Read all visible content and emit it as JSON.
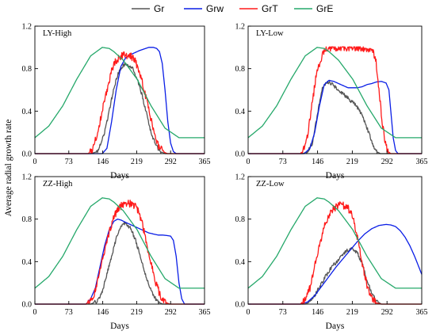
{
  "figure": {
    "ylabel": "Average radial growth rate",
    "xlabel": "Days"
  },
  "legend": {
    "placement": "top-center",
    "entries": [
      {
        "name": "Gr",
        "color": "#555555"
      },
      {
        "name": "Grw",
        "color": "#0a1ee6"
      },
      {
        "name": "GrT",
        "color": "#ff1a1a"
      },
      {
        "name": "GrE",
        "color": "#25a86a"
      }
    ]
  },
  "chart_data": [
    {
      "type": "line",
      "title": "LY-High",
      "xlabel": "Days",
      "ylabel": "Average radial growth rate",
      "xlim": [
        0,
        365
      ],
      "ylim": [
        0,
        1.2
      ],
      "xticks": [
        0,
        73,
        146,
        219,
        292,
        365
      ],
      "yticks": [
        0.0,
        0.4,
        0.8,
        1.2
      ],
      "grid": false,
      "series": [
        {
          "name": "Gr",
          "color": "#555555",
          "x": [
            0,
            120,
            135,
            150,
            160,
            170,
            180,
            190,
            200,
            210,
            220,
            230,
            240,
            250,
            260,
            270,
            280,
            290,
            365
          ],
          "y": [
            0,
            0,
            0.02,
            0.2,
            0.4,
            0.62,
            0.76,
            0.83,
            0.84,
            0.8,
            0.7,
            0.56,
            0.38,
            0.2,
            0.08,
            0.02,
            0,
            0,
            0
          ]
        },
        {
          "name": "Grw",
          "color": "#0a1ee6",
          "x": [
            0,
            145,
            155,
            165,
            175,
            185,
            195,
            205,
            215,
            225,
            235,
            245,
            255,
            262,
            268,
            274,
            280,
            286,
            292,
            298,
            304,
            365
          ],
          "y": [
            0,
            0,
            0.05,
            0.3,
            0.6,
            0.82,
            0.9,
            0.93,
            0.95,
            0.97,
            0.985,
            1.0,
            1.0,
            0.99,
            0.96,
            0.85,
            0.6,
            0.3,
            0.1,
            0.02,
            0,
            0
          ]
        },
        {
          "name": "GrT",
          "color": "#ff1a1a",
          "x": [
            0,
            115,
            125,
            135,
            145,
            155,
            165,
            175,
            185,
            195,
            205,
            215,
            225,
            235,
            245,
            255,
            265,
            275,
            285,
            295,
            365
          ],
          "y": [
            0,
            0,
            0.05,
            0.2,
            0.4,
            0.6,
            0.78,
            0.88,
            0.92,
            0.93,
            0.92,
            0.88,
            0.78,
            0.6,
            0.42,
            0.22,
            0.08,
            0.02,
            0,
            0,
            0
          ]
        },
        {
          "name": "GrE",
          "color": "#25a86a",
          "x": [
            0,
            30,
            60,
            90,
            120,
            145,
            160,
            170,
            190,
            220,
            250,
            280,
            310,
            340,
            365
          ],
          "y": [
            0.15,
            0.26,
            0.45,
            0.7,
            0.92,
            1.0,
            0.99,
            0.96,
            0.88,
            0.7,
            0.45,
            0.24,
            0.15,
            0.15,
            0.15
          ]
        }
      ]
    },
    {
      "type": "line",
      "title": "LY-Low",
      "xlabel": "Days",
      "ylabel": "",
      "xlim": [
        0,
        365
      ],
      "ylim": [
        0,
        1.2
      ],
      "xticks": [
        0,
        73,
        146,
        219,
        292,
        365
      ],
      "yticks": [
        0.0,
        0.4,
        0.8,
        1.2
      ],
      "grid": false,
      "series": [
        {
          "name": "Gr",
          "color": "#555555",
          "x": [
            0,
            115,
            125,
            135,
            145,
            155,
            165,
            175,
            185,
            195,
            205,
            215,
            225,
            235,
            245,
            255,
            262,
            270,
            278,
            365
          ],
          "y": [
            0,
            0,
            0.02,
            0.1,
            0.35,
            0.6,
            0.68,
            0.66,
            0.62,
            0.58,
            0.54,
            0.5,
            0.46,
            0.4,
            0.3,
            0.18,
            0.08,
            0.02,
            0,
            0
          ]
        },
        {
          "name": "Grw",
          "color": "#0a1ee6",
          "x": [
            0,
            118,
            130,
            140,
            150,
            160,
            170,
            180,
            190,
            200,
            210,
            220,
            230,
            240,
            250,
            260,
            270,
            280,
            290,
            296,
            300,
            305,
            310,
            315,
            365
          ],
          "y": [
            0,
            0,
            0.05,
            0.2,
            0.45,
            0.65,
            0.69,
            0.68,
            0.66,
            0.64,
            0.62,
            0.62,
            0.62,
            0.63,
            0.65,
            0.66,
            0.675,
            0.68,
            0.665,
            0.6,
            0.4,
            0.15,
            0.03,
            0,
            0
          ]
        },
        {
          "name": "GrT",
          "color": "#ff1a1a",
          "x": [
            0,
            110,
            118,
            126,
            134,
            142,
            150,
            158,
            166,
            175,
            185,
            200,
            220,
            240,
            260,
            268,
            275,
            282,
            288,
            294,
            300,
            365
          ],
          "y": [
            0,
            0,
            0.05,
            0.2,
            0.45,
            0.7,
            0.85,
            0.95,
            0.98,
            1.0,
            1.0,
            1.0,
            1.0,
            0.99,
            0.98,
            0.9,
            0.6,
            0.3,
            0.1,
            0.02,
            0,
            0
          ]
        },
        {
          "name": "GrE",
          "color": "#25a86a",
          "x": [
            0,
            30,
            60,
            90,
            120,
            145,
            160,
            170,
            190,
            220,
            250,
            280,
            310,
            340,
            365
          ],
          "y": [
            0.15,
            0.26,
            0.45,
            0.7,
            0.92,
            1.0,
            0.99,
            0.96,
            0.88,
            0.7,
            0.45,
            0.24,
            0.15,
            0.15,
            0.15
          ]
        }
      ]
    },
    {
      "type": "line",
      "title": "ZZ-High",
      "xlabel": "Days",
      "ylabel": "",
      "xlim": [
        0,
        365
      ],
      "ylim": [
        0,
        1.2
      ],
      "xticks": [
        0,
        73,
        146,
        219,
        292,
        365
      ],
      "yticks": [
        0.0,
        0.4,
        0.8,
        1.2
      ],
      "grid": false,
      "series": [
        {
          "name": "Gr",
          "color": "#555555",
          "x": [
            0,
            120,
            135,
            145,
            155,
            165,
            175,
            185,
            195,
            205,
            215,
            225,
            235,
            245,
            255,
            265,
            275,
            285,
            365
          ],
          "y": [
            0,
            0,
            0.03,
            0.12,
            0.28,
            0.45,
            0.62,
            0.74,
            0.76,
            0.72,
            0.62,
            0.48,
            0.32,
            0.18,
            0.08,
            0.02,
            0,
            0,
            0
          ]
        },
        {
          "name": "Grw",
          "color": "#0a1ee6",
          "x": [
            0,
            110,
            120,
            130,
            140,
            150,
            160,
            170,
            178,
            186,
            195,
            205,
            215,
            225,
            235,
            245,
            255,
            265,
            275,
            285,
            292,
            298,
            304,
            310,
            316,
            322,
            365
          ],
          "y": [
            0,
            0,
            0.05,
            0.15,
            0.35,
            0.55,
            0.7,
            0.78,
            0.8,
            0.79,
            0.77,
            0.75,
            0.73,
            0.71,
            0.69,
            0.67,
            0.66,
            0.65,
            0.65,
            0.645,
            0.64,
            0.6,
            0.45,
            0.2,
            0.05,
            0,
            0
          ]
        },
        {
          "name": "GrT",
          "color": "#ff1a1a",
          "x": [
            0,
            110,
            120,
            130,
            140,
            150,
            160,
            170,
            180,
            190,
            200,
            210,
            220,
            230,
            240,
            250,
            260,
            270,
            280,
            290,
            365
          ],
          "y": [
            0,
            0,
            0.04,
            0.12,
            0.3,
            0.5,
            0.68,
            0.82,
            0.9,
            0.94,
            0.95,
            0.94,
            0.9,
            0.78,
            0.58,
            0.38,
            0.2,
            0.08,
            0.02,
            0,
            0
          ]
        },
        {
          "name": "GrE",
          "color": "#25a86a",
          "x": [
            0,
            30,
            60,
            90,
            120,
            145,
            160,
            170,
            190,
            220,
            250,
            280,
            310,
            340,
            365
          ],
          "y": [
            0.15,
            0.26,
            0.45,
            0.7,
            0.92,
            1.0,
            0.99,
            0.96,
            0.88,
            0.7,
            0.45,
            0.24,
            0.15,
            0.15,
            0.15
          ]
        }
      ]
    },
    {
      "type": "line",
      "title": "ZZ-Low",
      "xlabel": "Days",
      "ylabel": "",
      "xlim": [
        0,
        365
      ],
      "ylim": [
        0,
        1.2
      ],
      "xticks": [
        0,
        73,
        146,
        219,
        292,
        365
      ],
      "yticks": [
        0.0,
        0.4,
        0.8,
        1.2
      ],
      "grid": false,
      "series": [
        {
          "name": "Gr",
          "color": "#555555",
          "x": [
            0,
            120,
            130,
            140,
            150,
            160,
            170,
            180,
            190,
            200,
            210,
            220,
            230,
            240,
            250,
            260,
            270,
            280,
            290,
            365
          ],
          "y": [
            0,
            0,
            0.02,
            0.08,
            0.16,
            0.24,
            0.31,
            0.37,
            0.42,
            0.47,
            0.51,
            0.52,
            0.48,
            0.38,
            0.22,
            0.1,
            0.03,
            0,
            0,
            0
          ]
        },
        {
          "name": "Grw",
          "color": "#0a1ee6",
          "x": [
            0,
            110,
            125,
            140,
            155,
            170,
            185,
            200,
            215,
            230,
            245,
            260,
            275,
            290,
            300,
            310,
            320,
            330,
            340,
            350,
            358,
            365
          ],
          "y": [
            0,
            0,
            0.02,
            0.08,
            0.17,
            0.26,
            0.35,
            0.43,
            0.51,
            0.59,
            0.66,
            0.71,
            0.74,
            0.75,
            0.745,
            0.73,
            0.69,
            0.63,
            0.55,
            0.45,
            0.36,
            0.28
          ]
        },
        {
          "name": "GrT",
          "color": "#ff1a1a",
          "x": [
            0,
            110,
            120,
            130,
            140,
            150,
            160,
            170,
            180,
            190,
            200,
            210,
            220,
            230,
            240,
            250,
            260,
            270,
            280,
            290,
            365
          ],
          "y": [
            0,
            0,
            0.05,
            0.15,
            0.35,
            0.55,
            0.72,
            0.84,
            0.9,
            0.93,
            0.93,
            0.9,
            0.82,
            0.62,
            0.38,
            0.18,
            0.06,
            0.01,
            0,
            0,
            0
          ]
        },
        {
          "name": "GrE",
          "color": "#25a86a",
          "x": [
            0,
            30,
            60,
            90,
            120,
            145,
            160,
            170,
            190,
            220,
            250,
            280,
            310,
            340,
            365
          ],
          "y": [
            0.15,
            0.26,
            0.45,
            0.7,
            0.92,
            1.0,
            0.99,
            0.96,
            0.88,
            0.7,
            0.45,
            0.24,
            0.15,
            0.15,
            0.15
          ]
        }
      ]
    }
  ]
}
